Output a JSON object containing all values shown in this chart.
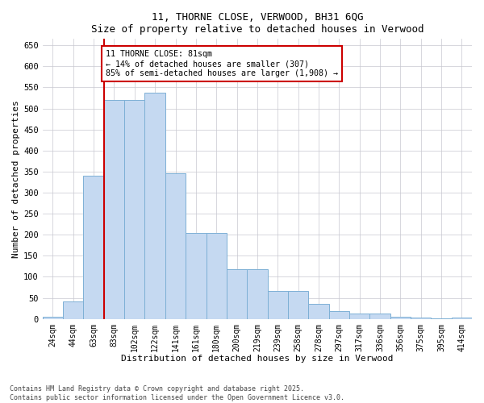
{
  "title_line1": "11, THORNE CLOSE, VERWOOD, BH31 6QG",
  "title_line2": "Size of property relative to detached houses in Verwood",
  "xlabel": "Distribution of detached houses by size in Verwood",
  "ylabel": "Number of detached properties",
  "categories": [
    "24sqm",
    "44sqm",
    "63sqm",
    "83sqm",
    "102sqm",
    "122sqm",
    "141sqm",
    "161sqm",
    "180sqm",
    "200sqm",
    "219sqm",
    "239sqm",
    "258sqm",
    "278sqm",
    "297sqm",
    "317sqm",
    "336sqm",
    "356sqm",
    "375sqm",
    "395sqm",
    "414sqm"
  ],
  "values": [
    5,
    42,
    340,
    520,
    520,
    538,
    345,
    205,
    205,
    118,
    118,
    67,
    67,
    36,
    18,
    13,
    13,
    5,
    4,
    1,
    4
  ],
  "bar_color": "#C5D9F1",
  "bar_edge_color": "#7DB0D5",
  "vline_color": "#CC0000",
  "annotation_text": "11 THORNE CLOSE: 81sqm\n← 14% of detached houses are smaller (307)\n85% of semi-detached houses are larger (1,908) →",
  "annotation_box_color": "#CC0000",
  "ylim": [
    0,
    665
  ],
  "yticks": [
    0,
    50,
    100,
    150,
    200,
    250,
    300,
    350,
    400,
    450,
    500,
    550,
    600,
    650
  ],
  "bg_color": "#FFFFFF",
  "grid_color": "#C8C8D0",
  "footer_text": "Contains HM Land Registry data © Crown copyright and database right 2025.\nContains public sector information licensed under the Open Government Licence v3.0.",
  "figsize": [
    6.0,
    5.0
  ],
  "dpi": 100
}
